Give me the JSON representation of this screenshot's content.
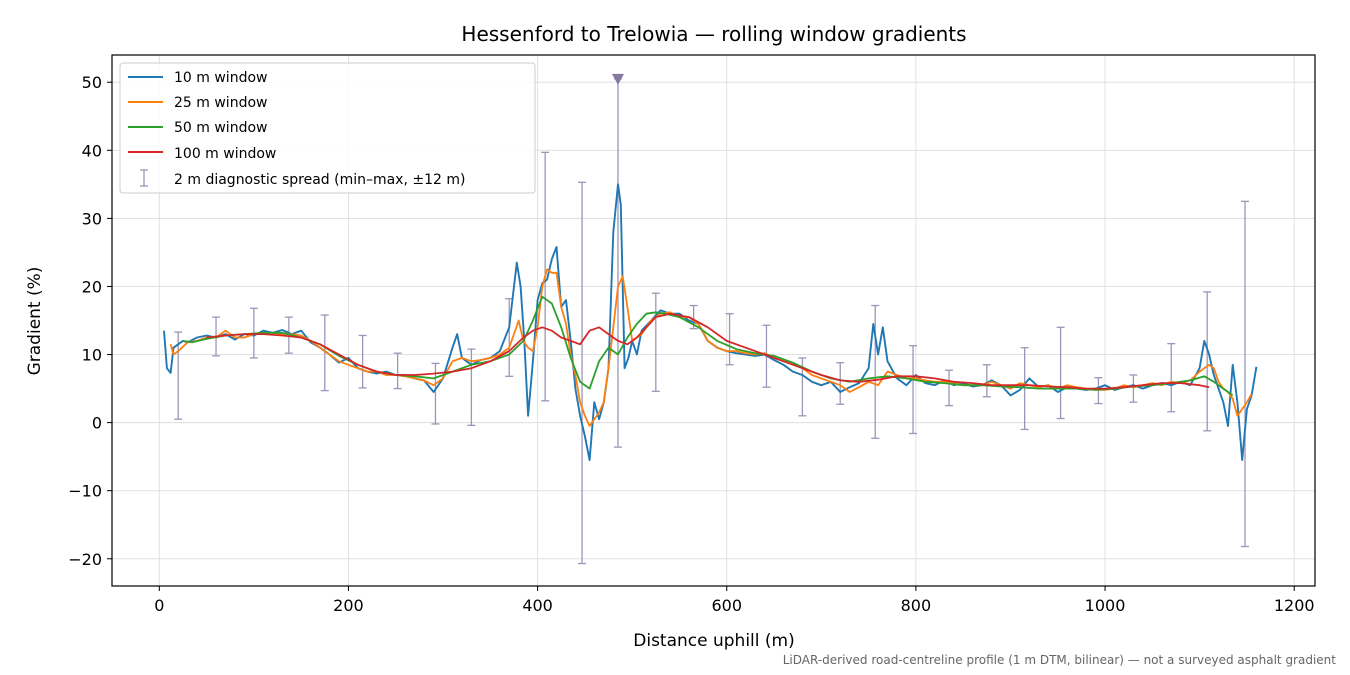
{
  "chart_data": {
    "type": "line",
    "title": "Hessenford to Trelowia — rolling window gradients",
    "xlabel": "Distance uphill (m)",
    "ylabel": "Gradient (%)",
    "xlim": [
      -50,
      1222
    ],
    "ylim": [
      -24,
      54
    ],
    "xticks": [
      0,
      200,
      400,
      600,
      800,
      1000,
      1200
    ],
    "yticks": [
      -20,
      -10,
      0,
      10,
      20,
      30,
      40,
      50
    ],
    "ytick_labels": [
      "−20",
      "−10",
      "0",
      "10",
      "20",
      "30",
      "40",
      "50"
    ],
    "grid": true,
    "legend_position": "top-left",
    "footnote": "LiDAR-derived road-centreline profile (1 m DTM, bilinear) — not a surveyed asphalt gradient",
    "series": [
      {
        "name": "10 m window",
        "color": "#1f77b4",
        "x": [
          5,
          8,
          12,
          15,
          20,
          25,
          30,
          40,
          50,
          60,
          70,
          80,
          90,
          100,
          110,
          120,
          130,
          140,
          150,
          160,
          170,
          180,
          190,
          200,
          210,
          220,
          230,
          240,
          250,
          260,
          270,
          280,
          290,
          300,
          310,
          315,
          320,
          330,
          340,
          350,
          360,
          370,
          378,
          382,
          386,
          390,
          395,
          400,
          405,
          410,
          415,
          420,
          425,
          430,
          435,
          440,
          445,
          450,
          455,
          460,
          465,
          470,
          475,
          480,
          485,
          488,
          492,
          496,
          500,
          505,
          510,
          520,
          530,
          540,
          550,
          560,
          570,
          580,
          590,
          600,
          610,
          620,
          630,
          640,
          650,
          660,
          670,
          680,
          690,
          700,
          710,
          720,
          730,
          740,
          750,
          755,
          760,
          765,
          770,
          780,
          790,
          800,
          810,
          820,
          830,
          840,
          850,
          860,
          870,
          880,
          890,
          900,
          910,
          920,
          930,
          940,
          950,
          960,
          970,
          980,
          990,
          1000,
          1010,
          1020,
          1030,
          1040,
          1050,
          1060,
          1070,
          1080,
          1090,
          1100,
          1105,
          1110,
          1115,
          1120,
          1125,
          1130,
          1135,
          1140,
          1145,
          1150,
          1155,
          1160
        ],
        "values": [
          13.5,
          8,
          7.3,
          11,
          11.5,
          12,
          11.8,
          12.5,
          12.8,
          12.5,
          13,
          12.2,
          13,
          12.8,
          13.5,
          13.2,
          13.6,
          13,
          13.5,
          11.8,
          11,
          10,
          8.8,
          9.5,
          8,
          7.5,
          7.2,
          7.5,
          7,
          7,
          6.5,
          6.2,
          4.5,
          6.5,
          11,
          13,
          9.5,
          8.5,
          9.2,
          9.5,
          10.5,
          14,
          23.5,
          20,
          12,
          1,
          9,
          18,
          20.5,
          21,
          24,
          25.8,
          17,
          18,
          12,
          5,
          1,
          -2,
          -5.5,
          3,
          0.5,
          3,
          8,
          28,
          35,
          32,
          8,
          9.5,
          12,
          10,
          13.5,
          15,
          16.5,
          16,
          16,
          15,
          14.5,
          12,
          11,
          10.5,
          10.2,
          10,
          9.8,
          10,
          9.2,
          8.5,
          7.5,
          7,
          6,
          5.5,
          6,
          4.5,
          5.2,
          5.8,
          8,
          14.5,
          10,
          14,
          9,
          6.5,
          5.5,
          7,
          5.8,
          5.5,
          6.2,
          5.5,
          5.8,
          5.3,
          5.5,
          6.2,
          5.5,
          4,
          4.8,
          6.5,
          5.2,
          5.5,
          4.5,
          5.2,
          5,
          4.8,
          5,
          5.5,
          4.8,
          5.2,
          5.5,
          5,
          5.5,
          5.8,
          5.5,
          6,
          5.5,
          8,
          12,
          10,
          7,
          5,
          3,
          -0.5,
          8.5,
          3,
          -5.5,
          2,
          4,
          8.2
        ]
      },
      {
        "name": "25 m window",
        "color": "#ff7f0e",
        "x": [
          12,
          15,
          20,
          30,
          40,
          50,
          60,
          70,
          80,
          90,
          100,
          110,
          120,
          130,
          140,
          150,
          160,
          170,
          180,
          190,
          200,
          210,
          220,
          230,
          240,
          250,
          260,
          270,
          280,
          290,
          300,
          310,
          320,
          330,
          340,
          350,
          360,
          370,
          380,
          385,
          390,
          395,
          400,
          405,
          410,
          415,
          420,
          425,
          430,
          435,
          440,
          445,
          450,
          455,
          460,
          465,
          470,
          475,
          480,
          485,
          490,
          495,
          500,
          510,
          520,
          530,
          540,
          550,
          560,
          570,
          580,
          590,
          600,
          610,
          620,
          630,
          640,
          650,
          660,
          670,
          680,
          690,
          700,
          710,
          720,
          730,
          740,
          750,
          760,
          770,
          780,
          790,
          800,
          810,
          820,
          830,
          840,
          850,
          860,
          870,
          880,
          890,
          900,
          910,
          920,
          930,
          940,
          950,
          960,
          970,
          980,
          990,
          1000,
          1010,
          1020,
          1030,
          1040,
          1050,
          1060,
          1070,
          1080,
          1090,
          1100,
          1105,
          1110,
          1115,
          1120,
          1125,
          1130,
          1135,
          1140,
          1145,
          1150,
          1155
        ],
        "values": [
          11.5,
          10,
          10.5,
          11.8,
          12,
          12.5,
          12.5,
          13.5,
          12.5,
          12.5,
          13,
          13,
          13.2,
          13,
          13,
          12.8,
          12,
          11,
          10,
          9,
          8.5,
          8,
          7.5,
          7.5,
          7,
          7,
          6.8,
          6.5,
          6.2,
          5.5,
          6.5,
          9,
          9.5,
          9,
          9.2,
          9.5,
          10,
          11,
          15,
          12,
          11,
          10.5,
          14,
          20,
          22.5,
          22,
          22,
          17,
          14.5,
          10,
          7,
          3,
          1,
          -0.5,
          0.5,
          1.5,
          3,
          8,
          14,
          20,
          21.5,
          17,
          12,
          13,
          15,
          16,
          16.2,
          15.5,
          15.5,
          14.5,
          12,
          11,
          10.5,
          10.5,
          10.2,
          10,
          10.2,
          9.5,
          9,
          8.8,
          8,
          7,
          6.5,
          6,
          5.5,
          4.5,
          5.2,
          6,
          5.5,
          7.5,
          7,
          6.5,
          6.5,
          6.2,
          6,
          6,
          5.8,
          5.5,
          5.5,
          5.5,
          6,
          5.5,
          5,
          5.8,
          5.5,
          5.2,
          5.5,
          5,
          5.5,
          5.2,
          5,
          4.8,
          4.8,
          5,
          5.5,
          5.2,
          5.5,
          5.8,
          5.5,
          6,
          5.8,
          6.2,
          7.5,
          8,
          8.5,
          8,
          6,
          5,
          4.5,
          3.5,
          1,
          2,
          3,
          4.2
        ]
      },
      {
        "name": "50 m window",
        "color": "#2ca02c",
        "x": [
          25,
          35,
          50,
          70,
          90,
          110,
          130,
          150,
          170,
          190,
          210,
          230,
          250,
          270,
          290,
          310,
          330,
          350,
          370,
          385,
          395,
          405,
          415,
          425,
          435,
          445,
          455,
          465,
          475,
          485,
          495,
          505,
          515,
          525,
          535,
          550,
          570,
          590,
          610,
          630,
          650,
          670,
          690,
          710,
          730,
          750,
          770,
          790,
          810,
          830,
          850,
          870,
          890,
          910,
          930,
          950,
          970,
          990,
          1010,
          1030,
          1050,
          1070,
          1090,
          1105,
          1115,
          1125,
          1135
        ],
        "values": [
          12,
          11.8,
          12.3,
          12.8,
          13,
          13.2,
          13.2,
          12.5,
          11.5,
          9.8,
          8.5,
          7.5,
          7,
          6.8,
          6.5,
          7.5,
          8.5,
          9,
          10,
          12,
          15,
          18.5,
          17.5,
          14,
          9.5,
          6,
          5,
          9,
          11,
          10,
          12.5,
          14.5,
          16,
          16.2,
          16,
          15.5,
          14,
          12,
          10.8,
          10.2,
          9.8,
          8.8,
          7.5,
          6.5,
          6,
          6.5,
          6.8,
          6.5,
          6,
          5.8,
          5.5,
          5.5,
          5.3,
          5.2,
          5,
          5,
          5,
          4.8,
          5,
          5.3,
          5.5,
          5.8,
          6.2,
          6.8,
          6,
          5,
          4
        ]
      },
      {
        "name": "100 m window",
        "color": "#d62728",
        "x": [
          50,
          70,
          90,
          110,
          130,
          150,
          170,
          190,
          210,
          230,
          250,
          270,
          290,
          310,
          330,
          350,
          370,
          385,
          395,
          405,
          415,
          425,
          435,
          445,
          455,
          465,
          475,
          485,
          495,
          505,
          515,
          525,
          540,
          560,
          580,
          600,
          620,
          640,
          660,
          680,
          700,
          720,
          740,
          760,
          780,
          800,
          820,
          840,
          860,
          880,
          900,
          920,
          940,
          960,
          980,
          1000,
          1020,
          1040,
          1060,
          1080,
          1100,
          1110
        ],
        "values": [
          12.5,
          12.8,
          13,
          13,
          12.8,
          12.5,
          11.5,
          10,
          8.5,
          7.5,
          7,
          7,
          7.2,
          7.5,
          8,
          9,
          10.5,
          12.5,
          13.5,
          14,
          13.5,
          12.5,
          12,
          11.5,
          13.5,
          14,
          13,
          12,
          11.5,
          12.5,
          14,
          15.5,
          16,
          15.5,
          14,
          12,
          11,
          10,
          9,
          8,
          7,
          6.2,
          6,
          6.3,
          6.8,
          6.8,
          6.5,
          6,
          5.8,
          5.5,
          5.5,
          5.5,
          5.3,
          5.2,
          5,
          5,
          5.2,
          5.5,
          5.8,
          5.8,
          5.5,
          5.2
        ]
      }
    ],
    "errorbars": {
      "name": "2 m diagnostic spread (min–max, ±12 m)",
      "color": "#9b96b8",
      "points": [
        {
          "x": 20,
          "low": 0.5,
          "high": 13.3
        },
        {
          "x": 60,
          "low": 9.8,
          "high": 15.5
        },
        {
          "x": 100,
          "low": 9.5,
          "high": 16.8
        },
        {
          "x": 137,
          "low": 10.2,
          "high": 15.5
        },
        {
          "x": 175,
          "low": 4.7,
          "high": 15.8
        },
        {
          "x": 215,
          "low": 5.1,
          "high": 12.8
        },
        {
          "x": 252,
          "low": 5.0,
          "high": 10.2
        },
        {
          "x": 292,
          "low": -0.2,
          "high": 8.7
        },
        {
          "x": 330,
          "low": -0.4,
          "high": 10.8
        },
        {
          "x": 370,
          "low": 6.8,
          "high": 18.2
        },
        {
          "x": 408,
          "low": 3.2,
          "high": 39.7
        },
        {
          "x": 447,
          "low": -20.7,
          "high": 35.3
        },
        {
          "x": 485,
          "low": -3.6,
          "high": 50.5
        },
        {
          "x": 525,
          "low": 4.6,
          "high": 19.0
        },
        {
          "x": 565,
          "low": 13.8,
          "high": 17.2
        },
        {
          "x": 603,
          "low": 8.5,
          "high": 16.0
        },
        {
          "x": 642,
          "low": 5.2,
          "high": 14.3
        },
        {
          "x": 680,
          "low": 1.0,
          "high": 9.5
        },
        {
          "x": 720,
          "low": 2.7,
          "high": 8.8
        },
        {
          "x": 757,
          "low": -2.3,
          "high": 17.2
        },
        {
          "x": 797,
          "low": -1.6,
          "high": 11.3
        },
        {
          "x": 835,
          "low": 2.5,
          "high": 7.7
        },
        {
          "x": 875,
          "low": 3.8,
          "high": 8.5
        },
        {
          "x": 915,
          "low": -1.0,
          "high": 11.0
        },
        {
          "x": 953,
          "low": 0.6,
          "high": 14.0
        },
        {
          "x": 993,
          "low": 2.8,
          "high": 6.6
        },
        {
          "x": 1030,
          "low": 3.0,
          "high": 7.0
        },
        {
          "x": 1070,
          "low": 1.6,
          "high": 11.6
        },
        {
          "x": 1108,
          "low": -1.2,
          "high": 19.2
        },
        {
          "x": 1148,
          "low": -18.2,
          "high": 32.5
        }
      ],
      "clip_marker": {
        "x": 485,
        "y": 50.5,
        "color": "#8477a0"
      }
    }
  }
}
